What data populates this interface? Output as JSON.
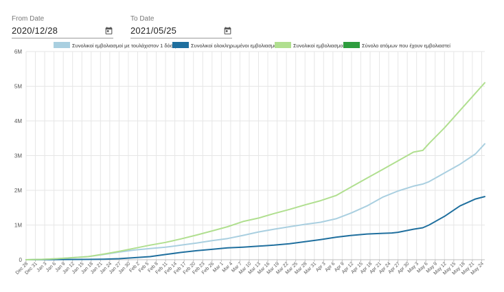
{
  "filters": {
    "from": {
      "label": "From Date",
      "value": "2020/12/28",
      "icon": "calendar-icon"
    },
    "to": {
      "label": "To Date",
      "value": "2021/05/25",
      "icon": "calendar-icon"
    }
  },
  "colors": {
    "at_least_one_dose": "#a9cfe0",
    "fully_vaccinated": "#1f6f9e",
    "total_vaccinations": "#b0df8f",
    "people_vaccinated": "#2e9d3e",
    "grid": "#e6e6e6",
    "axis_text": "#555555"
  },
  "chart_data": {
    "type": "line",
    "title": "",
    "xlabel": "",
    "ylabel": "",
    "ylim": [
      0,
      6000000
    ],
    "yticks": [
      0,
      1000000,
      2000000,
      3000000,
      4000000,
      5000000,
      6000000
    ],
    "ytick_labels": [
      "0",
      "1M",
      "2M",
      "3M",
      "4M",
      "5M",
      "6M"
    ],
    "grid": true,
    "legend_position": "top",
    "x_tick_labels": [
      "Dec 28",
      "Dec 31",
      "Jan 3",
      "Jan 6",
      "Jan 9",
      "Jan 12",
      "Jan 15",
      "Jan 18",
      "Jan 21",
      "Jan 24",
      "Jan 27",
      "Jan 30",
      "Feb 2",
      "Feb 5",
      "Feb 8",
      "Feb 11",
      "Feb 14",
      "Feb 17",
      "Feb 20",
      "Feb 23",
      "Feb 26",
      "Mar 1",
      "Mar 4",
      "Mar 7",
      "Mar 10",
      "Mar 13",
      "Mar 16",
      "Mar 19",
      "Mar 22",
      "Mar 25",
      "Mar 28",
      "Mar 31",
      "Apr 3",
      "Apr 6",
      "Apr 9",
      "Apr 12",
      "Apr 15",
      "Apr 18",
      "Apr 21",
      "Apr 24",
      "Apr 27",
      "Apr 30",
      "May 3",
      "May 6",
      "May 9",
      "May 12",
      "May 15",
      "May 18",
      "May 21",
      "May 24"
    ],
    "x_day_offsets": [
      0,
      3,
      6,
      9,
      12,
      15,
      18,
      21,
      24,
      27,
      30,
      33,
      36,
      39,
      42,
      45,
      48,
      51,
      54,
      57,
      60,
      63,
      66,
      69,
      72,
      75,
      78,
      81,
      84,
      87,
      90,
      93,
      96,
      99,
      102,
      105,
      108,
      111,
      114,
      117,
      120,
      123,
      126,
      129,
      132,
      135,
      138,
      141,
      144,
      147
    ],
    "x_last_day_offset": 148,
    "series": [
      {
        "name": "Συνολικοί εμβολιασμοί με τουλάχιστον 1 δόση",
        "color_key": "at_least_one_dose",
        "visible": true,
        "points": [
          [
            0,
            0
          ],
          [
            5,
            10000
          ],
          [
            10,
            30000
          ],
          [
            15,
            60000
          ],
          [
            20,
            90000
          ],
          [
            25,
            150000
          ],
          [
            30,
            220000
          ],
          [
            35,
            280000
          ],
          [
            40,
            320000
          ],
          [
            45,
            360000
          ],
          [
            50,
            420000
          ],
          [
            55,
            480000
          ],
          [
            60,
            550000
          ],
          [
            65,
            610000
          ],
          [
            70,
            700000
          ],
          [
            75,
            800000
          ],
          [
            80,
            880000
          ],
          [
            85,
            950000
          ],
          [
            90,
            1020000
          ],
          [
            95,
            1080000
          ],
          [
            100,
            1180000
          ],
          [
            105,
            1350000
          ],
          [
            110,
            1550000
          ],
          [
            115,
            1800000
          ],
          [
            120,
            1980000
          ],
          [
            125,
            2120000
          ],
          [
            128,
            2180000
          ],
          [
            130,
            2250000
          ],
          [
            135,
            2500000
          ],
          [
            140,
            2750000
          ],
          [
            145,
            3050000
          ],
          [
            148,
            3340000
          ]
        ]
      },
      {
        "name": "Συνολικοί ολοκληρωμένοι εμβολιασμοί",
        "color_key": "fully_vaccinated",
        "visible": true,
        "points": [
          [
            0,
            0
          ],
          [
            10,
            5000
          ],
          [
            20,
            10000
          ],
          [
            25,
            15000
          ],
          [
            30,
            30000
          ],
          [
            35,
            60000
          ],
          [
            40,
            90000
          ],
          [
            45,
            150000
          ],
          [
            50,
            210000
          ],
          [
            55,
            260000
          ],
          [
            60,
            300000
          ],
          [
            65,
            340000
          ],
          [
            70,
            360000
          ],
          [
            75,
            390000
          ],
          [
            80,
            420000
          ],
          [
            85,
            460000
          ],
          [
            90,
            520000
          ],
          [
            95,
            580000
          ],
          [
            100,
            650000
          ],
          [
            105,
            700000
          ],
          [
            110,
            740000
          ],
          [
            115,
            760000
          ],
          [
            118,
            770000
          ],
          [
            120,
            790000
          ],
          [
            125,
            880000
          ],
          [
            128,
            920000
          ],
          [
            130,
            1000000
          ],
          [
            135,
            1250000
          ],
          [
            140,
            1550000
          ],
          [
            145,
            1750000
          ],
          [
            148,
            1820000
          ]
        ]
      },
      {
        "name": "Συνολικοί εμβολιασμοί",
        "color_key": "total_vaccinations",
        "visible": true,
        "points": [
          [
            0,
            0
          ],
          [
            5,
            10000
          ],
          [
            10,
            30000
          ],
          [
            15,
            60000
          ],
          [
            20,
            90000
          ],
          [
            25,
            160000
          ],
          [
            30,
            240000
          ],
          [
            35,
            330000
          ],
          [
            40,
            420000
          ],
          [
            45,
            500000
          ],
          [
            50,
            600000
          ],
          [
            55,
            710000
          ],
          [
            60,
            830000
          ],
          [
            65,
            950000
          ],
          [
            70,
            1100000
          ],
          [
            75,
            1200000
          ],
          [
            80,
            1330000
          ],
          [
            85,
            1450000
          ],
          [
            90,
            1580000
          ],
          [
            95,
            1700000
          ],
          [
            100,
            1850000
          ],
          [
            105,
            2100000
          ],
          [
            110,
            2350000
          ],
          [
            115,
            2600000
          ],
          [
            120,
            2850000
          ],
          [
            125,
            3100000
          ],
          [
            128,
            3150000
          ],
          [
            130,
            3350000
          ],
          [
            135,
            3800000
          ],
          [
            140,
            4300000
          ],
          [
            145,
            4800000
          ],
          [
            148,
            5100000
          ]
        ]
      },
      {
        "name": "Σύνολο ατόμων που έχουν εμβολιαστεί",
        "color_key": "people_vaccinated",
        "visible": false,
        "points": []
      }
    ]
  }
}
